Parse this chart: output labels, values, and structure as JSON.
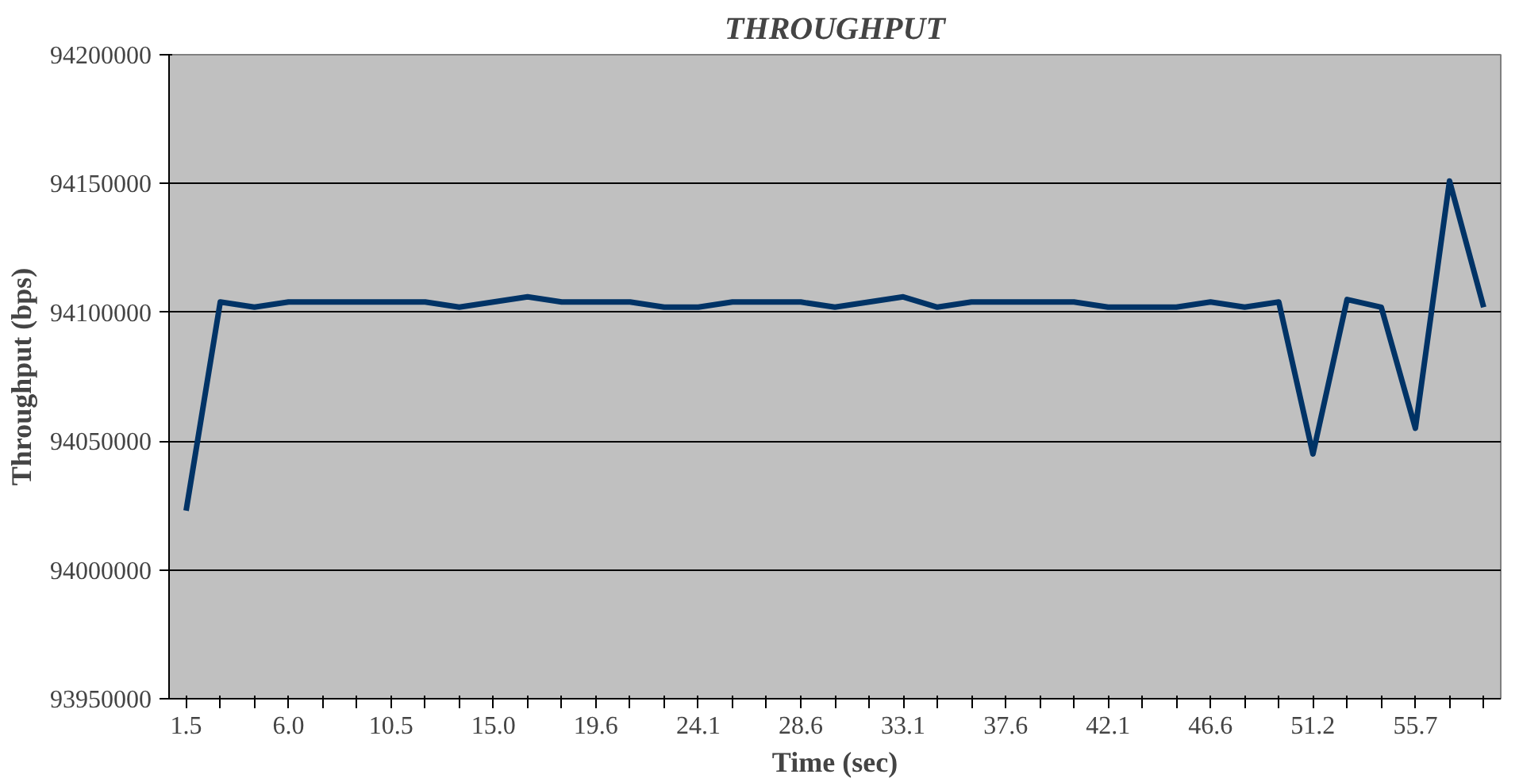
{
  "chart_data": {
    "type": "line",
    "title": "THROUGHPUT",
    "xlabel": "Time (sec)",
    "ylabel": "Throughput (bps)",
    "categories": [
      "1.5",
      null,
      null,
      "6.0",
      null,
      null,
      "10.5",
      null,
      null,
      "15.0",
      null,
      null,
      "19.6",
      null,
      null,
      "24.1",
      null,
      null,
      "28.6",
      null,
      null,
      "33.1",
      null,
      null,
      "37.6",
      null,
      null,
      "42.1",
      null,
      null,
      "46.6",
      null,
      null,
      "51.2",
      null,
      null,
      "55.7",
      null,
      null
    ],
    "series": [
      {
        "color": "#003366",
        "values": [
          94023000,
          94104000,
          94102000,
          94104000,
          94104000,
          94104000,
          94104000,
          94104000,
          94102000,
          94104000,
          94106000,
          94104000,
          94104000,
          94104000,
          94102000,
          94102000,
          94104000,
          94104000,
          94104000,
          94102000,
          94104000,
          94106000,
          94102000,
          94104000,
          94104000,
          94104000,
          94104000,
          94102000,
          94102000,
          94102000,
          94104000,
          94102000,
          94104000,
          94045000,
          94105000,
          94102000,
          94055000,
          94151000,
          94102000
        ]
      }
    ],
    "ylim": [
      93950000,
      94200000
    ],
    "yticks": [
      93950000,
      94000000,
      94050000,
      94100000,
      94150000,
      94200000
    ],
    "grid": "y",
    "marker": "none",
    "line_style": "solid"
  }
}
